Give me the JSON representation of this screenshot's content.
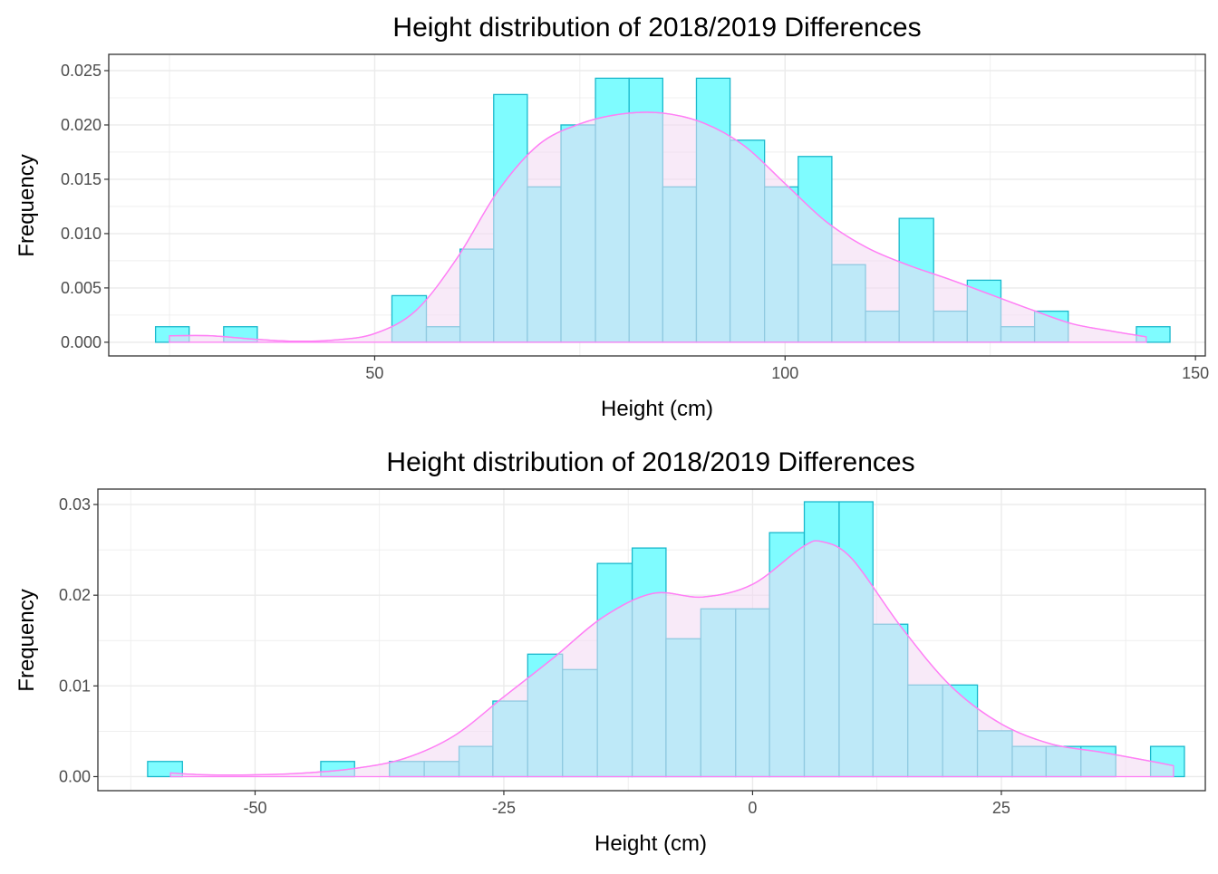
{
  "colors": {
    "bar_fill": "#7ffcff",
    "bar_stroke": "#1ab8cc",
    "density_fill": "#f2d9f2",
    "density_line": "#ff7ff5",
    "grid": "#ebebeb",
    "text": "#000000",
    "tick_text": "#4d4d4d"
  },
  "chart_data": [
    {
      "type": "bar",
      "title": "Height distribution of 2018/2019 Differences",
      "xlabel": "Height (cm)",
      "ylabel": "Frequency",
      "xlim": [
        17.6,
        151.2
      ],
      "ylim": [
        -0.00126,
        0.0265
      ],
      "xticks": [
        50,
        100,
        150
      ],
      "xtick_labels": [
        "50",
        "100",
        "150"
      ],
      "yticks": [
        0,
        0.005,
        0.01,
        0.015,
        0.02,
        0.025
      ],
      "ytick_labels": [
        "0.000",
        "0.005",
        "0.010",
        "0.015",
        "0.020",
        "0.025"
      ],
      "grid": true,
      "bins": [
        {
          "x0": 23.3,
          "x1": 27.4,
          "y": 0.00143
        },
        {
          "x0": 27.4,
          "x1": 31.6,
          "y": 0
        },
        {
          "x0": 31.6,
          "x1": 35.7,
          "y": 0.00143
        },
        {
          "x0": 35.7,
          "x1": 39.8,
          "y": 0
        },
        {
          "x0": 39.8,
          "x1": 43.9,
          "y": 0
        },
        {
          "x0": 43.9,
          "x1": 48.0,
          "y": 0
        },
        {
          "x0": 48.0,
          "x1": 52.1,
          "y": 0
        },
        {
          "x0": 52.1,
          "x1": 56.3,
          "y": 0.00429
        },
        {
          "x0": 56.3,
          "x1": 60.4,
          "y": 0.00143
        },
        {
          "x0": 60.4,
          "x1": 64.5,
          "y": 0.00857
        },
        {
          "x0": 64.5,
          "x1": 68.6,
          "y": 0.0228
        },
        {
          "x0": 68.6,
          "x1": 72.7,
          "y": 0.0143
        },
        {
          "x0": 72.7,
          "x1": 76.9,
          "y": 0.02
        },
        {
          "x0": 76.9,
          "x1": 81.0,
          "y": 0.0243
        },
        {
          "x0": 81.0,
          "x1": 85.1,
          "y": 0.0243
        },
        {
          "x0": 85.1,
          "x1": 89.2,
          "y": 0.0143
        },
        {
          "x0": 89.2,
          "x1": 93.3,
          "y": 0.0243
        },
        {
          "x0": 93.3,
          "x1": 97.5,
          "y": 0.0186
        },
        {
          "x0": 97.5,
          "x1": 101.6,
          "y": 0.0143
        },
        {
          "x0": 101.6,
          "x1": 105.7,
          "y": 0.0171
        },
        {
          "x0": 105.7,
          "x1": 109.8,
          "y": 0.00714
        },
        {
          "x0": 109.8,
          "x1": 113.9,
          "y": 0.00286
        },
        {
          "x0": 113.9,
          "x1": 118.1,
          "y": 0.0114
        },
        {
          "x0": 118.1,
          "x1": 122.2,
          "y": 0.00286
        },
        {
          "x0": 122.2,
          "x1": 126.3,
          "y": 0.00571
        },
        {
          "x0": 126.3,
          "x1": 130.4,
          "y": 0.00143
        },
        {
          "x0": 130.4,
          "x1": 134.5,
          "y": 0.00286
        },
        {
          "x0": 134.5,
          "x1": 138.7,
          "y": 0
        },
        {
          "x0": 138.7,
          "x1": 142.8,
          "y": 0
        },
        {
          "x0": 142.8,
          "x1": 146.9,
          "y": 0.00143
        }
      ],
      "density": {
        "x": [
          25,
          30,
          35,
          40,
          45,
          50,
          55,
          60,
          65,
          70,
          75,
          80,
          85,
          90,
          95,
          100,
          105,
          110,
          115,
          120,
          125,
          130,
          135,
          140,
          144
        ],
        "y": [
          0.0006,
          0.0006,
          0.0003,
          0.0001,
          0.0002,
          0.0008,
          0.0029,
          0.0077,
          0.0139,
          0.0182,
          0.0201,
          0.021,
          0.0211,
          0.0202,
          0.0181,
          0.0146,
          0.0111,
          0.0087,
          0.0071,
          0.0058,
          0.0044,
          0.003,
          0.0017,
          0.001,
          0.0005
        ]
      }
    },
    {
      "type": "bar",
      "title": "Height distribution of 2018/2019 Differences",
      "xlabel": "Height (cm)",
      "ylabel": "Frequency",
      "xlim": [
        -65.8,
        45.5
      ],
      "ylim": [
        -0.00155,
        0.0317
      ],
      "xticks": [
        -50,
        -25,
        0,
        25
      ],
      "xtick_labels": [
        "-50",
        "-25",
        "0",
        "25"
      ],
      "yticks": [
        0,
        0.01,
        0.02,
        0.03
      ],
      "ytick_labels": [
        "0.00",
        "0.01",
        "0.02",
        "0.03"
      ],
      "grid": true,
      "bins": [
        {
          "x0": -60.8,
          "x1": -57.3,
          "y": 0.00167
        },
        {
          "x0": -57.3,
          "x1": -53.9,
          "y": 0
        },
        {
          "x0": -53.9,
          "x1": -50.4,
          "y": 0
        },
        {
          "x0": -50.4,
          "x1": -46.9,
          "y": 0
        },
        {
          "x0": -46.9,
          "x1": -43.4,
          "y": 0
        },
        {
          "x0": -43.4,
          "x1": -40.0,
          "y": 0.00167
        },
        {
          "x0": -40.0,
          "x1": -36.5,
          "y": 0
        },
        {
          "x0": -36.5,
          "x1": -33.0,
          "y": 0.00167
        },
        {
          "x0": -33.0,
          "x1": -29.5,
          "y": 0.00167
        },
        {
          "x0": -29.5,
          "x1": -26.1,
          "y": 0.00333
        },
        {
          "x0": -26.1,
          "x1": -22.6,
          "y": 0.00833
        },
        {
          "x0": -22.6,
          "x1": -19.1,
          "y": 0.0135
        },
        {
          "x0": -19.1,
          "x1": -15.6,
          "y": 0.0118
        },
        {
          "x0": -15.6,
          "x1": -12.1,
          "y": 0.0235
        },
        {
          "x0": -12.1,
          "x1": -8.7,
          "y": 0.0252
        },
        {
          "x0": -8.7,
          "x1": -5.2,
          "y": 0.0152
        },
        {
          "x0": -5.2,
          "x1": -1.7,
          "y": 0.0185
        },
        {
          "x0": -1.7,
          "x1": 1.7,
          "y": 0.0185
        },
        {
          "x0": 1.7,
          "x1": 5.2,
          "y": 0.0269
        },
        {
          "x0": 5.2,
          "x1": 8.7,
          "y": 0.0303
        },
        {
          "x0": 8.7,
          "x1": 12.1,
          "y": 0.0303
        },
        {
          "x0": 12.1,
          "x1": 15.6,
          "y": 0.0168
        },
        {
          "x0": 15.6,
          "x1": 19.1,
          "y": 0.0101
        },
        {
          "x0": 19.1,
          "x1": 22.6,
          "y": 0.0101
        },
        {
          "x0": 22.6,
          "x1": 26.1,
          "y": 0.00505
        },
        {
          "x0": 26.1,
          "x1": 29.5,
          "y": 0.00333
        },
        {
          "x0": 29.5,
          "x1": 33.0,
          "y": 0.00333
        },
        {
          "x0": 33.0,
          "x1": 36.5,
          "y": 0.00333
        },
        {
          "x0": 36.5,
          "x1": 40.0,
          "y": 0
        },
        {
          "x0": 40.0,
          "x1": 43.4,
          "y": 0.00333
        }
      ],
      "density": {
        "x": [
          -58.5,
          -55,
          -50,
          -45,
          -40,
          -35,
          -30,
          -25,
          -20,
          -15,
          -10,
          -5,
          0,
          5,
          7,
          10,
          15,
          20,
          25,
          30,
          35,
          40,
          42.3
        ],
        "y": [
          0.0004,
          0.0002,
          0.0002,
          0.0004,
          0.0009,
          0.002,
          0.0045,
          0.0088,
          0.0131,
          0.0176,
          0.0202,
          0.0198,
          0.0212,
          0.0253,
          0.0259,
          0.024,
          0.0164,
          0.0099,
          0.0058,
          0.0036,
          0.0027,
          0.0017,
          0.0012
        ]
      }
    }
  ]
}
